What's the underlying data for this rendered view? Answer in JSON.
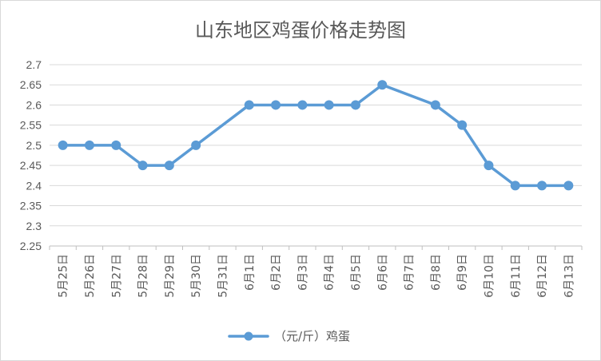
{
  "chart_data": {
    "type": "line",
    "title": "山东地区鸡蛋价格走势图",
    "categories": [
      "5月25日",
      "5月26日",
      "5月27日",
      "5月28日",
      "5月29日",
      "5月30日",
      "5月31日",
      "6月1日",
      "6月2日",
      "6月3日",
      "6月4日",
      "6月5日",
      "6月6日",
      "6月7日",
      "6月8日",
      "6月9日",
      "6月10日",
      "6月11日",
      "6月12日",
      "6月13日"
    ],
    "series": [
      {
        "name": "（元/斤）鸡蛋",
        "values": [
          2.5,
          2.5,
          2.5,
          2.45,
          2.45,
          2.5,
          null,
          2.6,
          2.6,
          2.6,
          2.6,
          2.6,
          2.65,
          null,
          2.6,
          2.55,
          2.45,
          2.4,
          2.4,
          2.4
        ],
        "color": "#5b9bd5"
      }
    ],
    "yticks": [
      "2.25",
      "2.3",
      "2.35",
      "2.4",
      "2.45",
      "2.5",
      "2.55",
      "2.6",
      "2.65",
      "2.7"
    ],
    "ylim": [
      2.25,
      2.7
    ],
    "grid": true,
    "legend": "bottom"
  }
}
